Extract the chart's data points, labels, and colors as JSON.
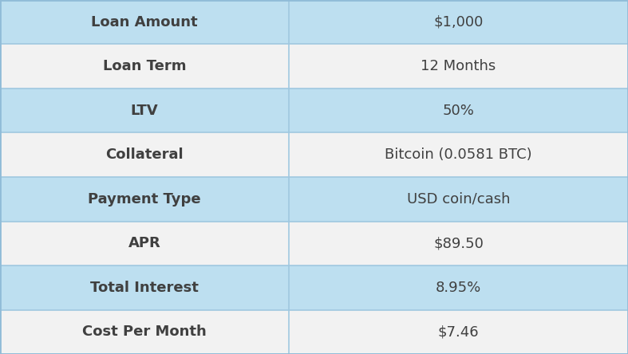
{
  "rows": [
    {
      "label": "Loan Amount",
      "value": "$1,000",
      "bg_label": "#bddff0",
      "bg_value": "#bddff0"
    },
    {
      "label": "Loan Term",
      "value": "12 Months",
      "bg_label": "#f2f2f2",
      "bg_value": "#f2f2f2"
    },
    {
      "label": "LTV",
      "value": "50%",
      "bg_label": "#bddff0",
      "bg_value": "#bddff0"
    },
    {
      "label": "Collateral",
      "value": "Bitcoin (0.0581 BTC)",
      "bg_label": "#f2f2f2",
      "bg_value": "#f2f2f2"
    },
    {
      "label": "Payment Type",
      "value": "USD coin/cash",
      "bg_label": "#bddff0",
      "bg_value": "#bddff0"
    },
    {
      "label": "APR",
      "value": "$89.50",
      "bg_label": "#f2f2f2",
      "bg_value": "#f2f2f2"
    },
    {
      "label": "Total Interest",
      "value": "8.95%",
      "bg_label": "#bddff0",
      "bg_value": "#bddff0"
    },
    {
      "label": "Cost Per Month",
      "value": "$7.46",
      "bg_label": "#f2f2f2",
      "bg_value": "#f2f2f2"
    }
  ],
  "col_split": 0.46,
  "text_color": "#404040",
  "border_color": "#a0c8e0",
  "font_size": 13,
  "fig_bg": "#c8e4f5",
  "outer_border_color": "#90bcd8"
}
